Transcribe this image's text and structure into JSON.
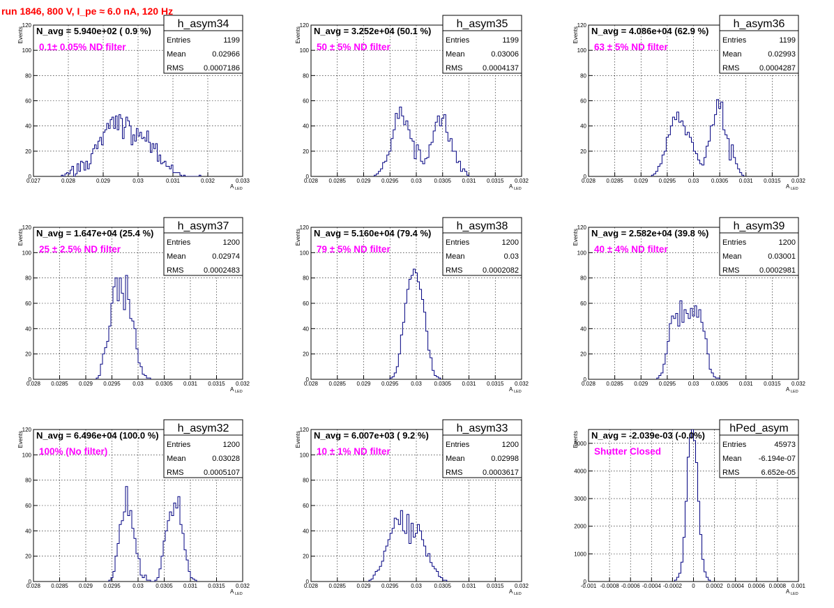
{
  "header": {
    "run_title": "run 1846,   800 V, I_pe ≈ 6.0 nA, 120 Hz"
  },
  "colors": {
    "histogram_line": "#000080",
    "magenta_text": "#ff00ff",
    "title_red": "#ff0000"
  },
  "chart_data": [
    {
      "type": "bar",
      "histogram": "h_asym34",
      "title": "h_asym34",
      "navg_label": "N_avg = 5.940e+02 ( 0.9 %)",
      "filter_label": "0.1± 0.05% ND filter",
      "stats": {
        "entries": "1199",
        "mean": "0.02966",
        "rms": "0.0007186"
      },
      "xlabel": "A",
      "xlabel_sub": "LED",
      "ylabel": "Events",
      "xlim": [
        0.027,
        0.033
      ],
      "ylim": [
        0,
        120
      ],
      "x_ticks": [
        0.027,
        0.028,
        0.029,
        0.03,
        0.031,
        0.032,
        0.033
      ],
      "x_tick_labels": [
        "0.027",
        "0.028",
        "0.029",
        "0.03",
        "0.031",
        "0.032",
        "0.033"
      ],
      "y_ticks": [
        0,
        20,
        40,
        60,
        80,
        100,
        120
      ],
      "y_tick_labels": [
        "0",
        "20",
        "40",
        "60",
        "80",
        "100",
        "120"
      ],
      "bin_start": 0.0278,
      "bin_width": 5e-05,
      "values": [
        1,
        0,
        2,
        3,
        2,
        5,
        8,
        0,
        2,
        10,
        4,
        12,
        11,
        5,
        12,
        6,
        10,
        18,
        22,
        25,
        22,
        28,
        31,
        25,
        35,
        37,
        42,
        38,
        45,
        47,
        38,
        48,
        37,
        49,
        46,
        30,
        39,
        47,
        44,
        40,
        25,
        33,
        28,
        38,
        32,
        35,
        30,
        31,
        28,
        36,
        27,
        19,
        26,
        22,
        26,
        12,
        17,
        10,
        11,
        12,
        8,
        8,
        6,
        9,
        3,
        3,
        3,
        3,
        1,
        0,
        1,
        0,
        0,
        0,
        0,
        0,
        0,
        0,
        0,
        1
      ]
    },
    {
      "type": "bar",
      "histogram": "h_asym35",
      "title": "h_asym35",
      "navg_label": "N_avg = 3.252e+04 (50.1 %)",
      "filter_label": "50 ± 5% ND filter",
      "stats": {
        "entries": "1199",
        "mean": "0.03006",
        "rms": "0.0004137"
      },
      "xlabel": "A",
      "xlabel_sub": "LED",
      "ylabel": "Events",
      "xlim": [
        0.028,
        0.032
      ],
      "ylim": [
        0,
        120
      ],
      "x_ticks": [
        0.028,
        0.0285,
        0.029,
        0.0295,
        0.03,
        0.0305,
        0.031,
        0.0315,
        0.032
      ],
      "x_tick_labels": [
        "0.028",
        "0.0285",
        "0.029",
        "0.0295",
        "0.03",
        "0.0305",
        "0.031",
        "0.0315",
        "0.032"
      ],
      "y_ticks": [
        0,
        20,
        40,
        60,
        80,
        100,
        120
      ],
      "y_tick_labels": [
        "0",
        "20",
        "40",
        "60",
        "80",
        "100",
        "120"
      ],
      "bin_start": 0.0292,
      "bin_width": 4e-05,
      "values": [
        1,
        2,
        4,
        6,
        11,
        12,
        17,
        20,
        30,
        37,
        50,
        46,
        55,
        48,
        41,
        44,
        37,
        30,
        28,
        14,
        25,
        21,
        12,
        10,
        14,
        15,
        25,
        27,
        36,
        43,
        48,
        40,
        46,
        49,
        35,
        28,
        30,
        20,
        20,
        11,
        12,
        4,
        6,
        4,
        1
      ]
    },
    {
      "type": "bar",
      "histogram": "h_asym36",
      "title": "h_asym36",
      "navg_label": "N_avg = 4.086e+04 (62.9 %)",
      "filter_label": "63 ± 5% ND filter",
      "stats": {
        "entries": "1199",
        "mean": "0.02993",
        "rms": "0.0004287"
      },
      "xlabel": "A",
      "xlabel_sub": "LED",
      "ylabel": "Events",
      "xlim": [
        0.028,
        0.032
      ],
      "ylim": [
        0,
        120
      ],
      "x_ticks": [
        0.028,
        0.0285,
        0.029,
        0.0295,
        0.03,
        0.0305,
        0.031,
        0.0315,
        0.032
      ],
      "x_tick_labels": [
        "0.028",
        "0.0285",
        "0.029",
        "0.0295",
        "0.03",
        "0.0305",
        "0.031",
        "0.0315",
        "0.032"
      ],
      "y_ticks": [
        0,
        20,
        40,
        60,
        80,
        100,
        120
      ],
      "y_tick_labels": [
        "0",
        "20",
        "40",
        "60",
        "80",
        "100",
        "120"
      ],
      "bin_start": 0.0292,
      "bin_width": 4e-05,
      "values": [
        1,
        2,
        4,
        8,
        10,
        17,
        20,
        31,
        33,
        40,
        47,
        45,
        51,
        43,
        44,
        40,
        33,
        35,
        31,
        27,
        20,
        18,
        13,
        10,
        9,
        15,
        24,
        28,
        40,
        41,
        49,
        61,
        54,
        59,
        37,
        33,
        30,
        13,
        25,
        15,
        10,
        6,
        3,
        1
      ]
    },
    {
      "type": "bar",
      "histogram": "h_asym37",
      "title": "h_asym37",
      "navg_label": "N_avg = 1.647e+04 (25.4 %)",
      "filter_label": "25 ± 2.5% ND filter",
      "stats": {
        "entries": "1200",
        "mean": "0.02974",
        "rms": "0.0002483"
      },
      "xlabel": "A",
      "xlabel_sub": "LED",
      "ylabel": "Events",
      "xlim": [
        0.028,
        0.032
      ],
      "ylim": [
        0,
        120
      ],
      "x_ticks": [
        0.028,
        0.0285,
        0.029,
        0.0295,
        0.03,
        0.0305,
        0.031,
        0.0315,
        0.032
      ],
      "x_tick_labels": [
        "0.028",
        "0.0285",
        "0.029",
        "0.0295",
        "0.03",
        "0.0305",
        "0.031",
        "0.0315",
        "0.032"
      ],
      "y_ticks": [
        0,
        20,
        40,
        60,
        80,
        100,
        120
      ],
      "y_tick_labels": [
        "0",
        "20",
        "40",
        "60",
        "80",
        "100",
        "120"
      ],
      "bin_start": 0.0292,
      "bin_width": 4e-05,
      "values": [
        1,
        3,
        12,
        20,
        25,
        30,
        42,
        60,
        73,
        80,
        62,
        80,
        68,
        55,
        82,
        63,
        48,
        46,
        40,
        24,
        13,
        10,
        4,
        3,
        1,
        1
      ]
    },
    {
      "type": "bar",
      "histogram": "h_asym38",
      "title": "h_asym38",
      "navg_label": "N_avg = 5.160e+04 (79.4 %)",
      "filter_label": "79 ± 5% ND filter",
      "stats": {
        "entries": "1200",
        "mean": "0.03",
        "rms": "0.0002082"
      },
      "xlabel": "A",
      "xlabel_sub": "LED",
      "ylabel": "Events",
      "xlim": [
        0.028,
        0.032
      ],
      "ylim": [
        0,
        120
      ],
      "x_ticks": [
        0.028,
        0.0285,
        0.029,
        0.0295,
        0.03,
        0.0305,
        0.031,
        0.0315,
        0.032
      ],
      "x_tick_labels": [
        "0.028",
        "0.0285",
        "0.029",
        "0.0295",
        "0.03",
        "0.0305",
        "0.031",
        "0.0315",
        "0.032"
      ],
      "y_ticks": [
        0,
        20,
        40,
        60,
        80,
        100,
        120
      ],
      "y_tick_labels": [
        "0",
        "20",
        "40",
        "60",
        "80",
        "100",
        "120"
      ],
      "bin_start": 0.0295,
      "bin_width": 4e-05,
      "values": [
        1,
        2,
        5,
        10,
        20,
        35,
        45,
        60,
        71,
        79,
        82,
        87,
        84,
        77,
        71,
        63,
        53,
        38,
        23,
        17,
        7,
        3,
        2,
        1
      ]
    },
    {
      "type": "bar",
      "histogram": "h_asym39",
      "title": "h_asym39",
      "navg_label": "N_avg = 2.582e+04 (39.8 %)",
      "filter_label": "40 ± 4% ND filter",
      "stats": {
        "entries": "1200",
        "mean": "0.03001",
        "rms": "0.0002981"
      },
      "xlabel": "A",
      "xlabel_sub": "LED",
      "ylabel": "Events",
      "xlim": [
        0.028,
        0.032
      ],
      "ylim": [
        0,
        120
      ],
      "x_ticks": [
        0.028,
        0.0285,
        0.029,
        0.0295,
        0.03,
        0.0305,
        0.031,
        0.0315,
        0.032
      ],
      "x_tick_labels": [
        "0.028",
        "0.0285",
        "0.029",
        "0.0295",
        "0.03",
        "0.0305",
        "0.031",
        "0.0315",
        "0.032"
      ],
      "y_ticks": [
        0,
        20,
        40,
        60,
        80,
        100,
        120
      ],
      "y_tick_labels": [
        "0",
        "20",
        "40",
        "60",
        "80",
        "100",
        "120"
      ],
      "bin_start": 0.0293,
      "bin_width": 4e-05,
      "values": [
        1,
        3,
        5,
        12,
        20,
        30,
        44,
        50,
        48,
        52,
        42,
        62,
        45,
        55,
        52,
        48,
        56,
        50,
        58,
        49,
        55,
        45,
        38,
        32,
        20,
        8,
        5,
        2,
        1,
        1
      ]
    },
    {
      "type": "bar",
      "histogram": "h_asym32",
      "title": "h_asym32",
      "navg_label": "N_avg = 6.496e+04 (100.0 %)",
      "filter_label": "100% (No filter)",
      "stats": {
        "entries": "1200",
        "mean": "0.03028",
        "rms": "0.0005107"
      },
      "xlabel": "A",
      "xlabel_sub": "LED",
      "ylabel": "Events",
      "xlim": [
        0.028,
        0.032
      ],
      "ylim": [
        0,
        120
      ],
      "x_ticks": [
        0.028,
        0.0285,
        0.029,
        0.0295,
        0.03,
        0.0305,
        0.031,
        0.0315,
        0.032
      ],
      "x_tick_labels": [
        "0.028",
        "0.0285",
        "0.029",
        "0.0295",
        "0.03",
        "0.0305",
        "0.031",
        "0.0315",
        "0.032"
      ],
      "y_ticks": [
        0,
        20,
        40,
        60,
        80,
        100,
        120
      ],
      "y_tick_labels": [
        "0",
        "20",
        "40",
        "60",
        "80",
        "100",
        "120"
      ],
      "bin_start": 0.02944,
      "bin_width": 4e-05,
      "values": [
        1,
        3,
        8,
        20,
        30,
        45,
        48,
        55,
        75,
        52,
        56,
        42,
        34,
        22,
        18,
        5,
        3,
        5,
        1,
        1,
        0,
        0,
        1,
        3,
        10,
        20,
        32,
        40,
        48,
        55,
        52,
        62,
        58,
        67,
        45,
        38,
        25,
        17,
        8,
        3,
        2,
        1
      ]
    },
    {
      "type": "bar",
      "histogram": "h_asym33",
      "title": "h_asym33",
      "navg_label": "N_avg = 6.007e+03 ( 9.2 %)",
      "filter_label": "10 ± 1% ND filter",
      "stats": {
        "entries": "1200",
        "mean": "0.02998",
        "rms": "0.0003617"
      },
      "xlabel": "A",
      "xlabel_sub": "LED",
      "ylabel": "Events",
      "xlim": [
        0.028,
        0.032
      ],
      "ylim": [
        0,
        120
      ],
      "x_ticks": [
        0.028,
        0.0285,
        0.029,
        0.0295,
        0.03,
        0.0305,
        0.031,
        0.0315,
        0.032
      ],
      "x_tick_labels": [
        "0.028",
        "0.0285",
        "0.029",
        "0.0295",
        "0.03",
        "0.0305",
        "0.031",
        "0.0315",
        "0.032"
      ],
      "y_ticks": [
        0,
        20,
        40,
        60,
        80,
        100,
        120
      ],
      "y_tick_labels": [
        "0",
        "20",
        "40",
        "60",
        "80",
        "100",
        "120"
      ],
      "bin_start": 0.0291,
      "bin_width": 4e-05,
      "values": [
        1,
        2,
        5,
        8,
        9,
        12,
        16,
        24,
        28,
        33,
        38,
        42,
        50,
        49,
        45,
        56,
        40,
        38,
        53,
        30,
        46,
        35,
        38,
        45,
        40,
        33,
        28,
        20,
        22,
        15,
        12,
        10,
        8,
        4,
        3,
        1,
        1
      ]
    },
    {
      "type": "bar",
      "histogram": "hPed_asym",
      "title": "hPed_asym",
      "navg_label": "N_avg = -2.039e-03 (-0.0%)",
      "filter_label": "Shutter Closed",
      "stats": {
        "entries": "45973",
        "mean": "-6.194e-07",
        "rms": "6.652e-05"
      },
      "xlabel": "A",
      "xlabel_sub": "LED",
      "ylabel": "Events",
      "xlim": [
        -0.001,
        0.001
      ],
      "ylim": [
        0,
        5500
      ],
      "x_ticks": [
        -0.001,
        -0.0008,
        -0.0006,
        -0.0004,
        -0.0002,
        0,
        0.0002,
        0.0004,
        0.0006,
        0.0008,
        0.001
      ],
      "x_tick_labels": [
        "-0.001",
        "-0.0008",
        "-0.0006",
        "-0.0004",
        "-0.0002",
        "0",
        "0.0002",
        "0.0004",
        "0.0006",
        "0.0008",
        "0.001"
      ],
      "y_ticks": [
        0,
        1000,
        2000,
        3000,
        4000,
        5000
      ],
      "y_tick_labels": [
        "0",
        "1000",
        "2000",
        "3000",
        "4000",
        "5000"
      ],
      "bin_start": -0.00018,
      "bin_width": 2e-05,
      "values": [
        50,
        150,
        300,
        700,
        1600,
        2900,
        4500,
        5200,
        5500,
        5100,
        4300,
        2900,
        1700,
        800,
        350,
        150,
        50
      ]
    }
  ]
}
